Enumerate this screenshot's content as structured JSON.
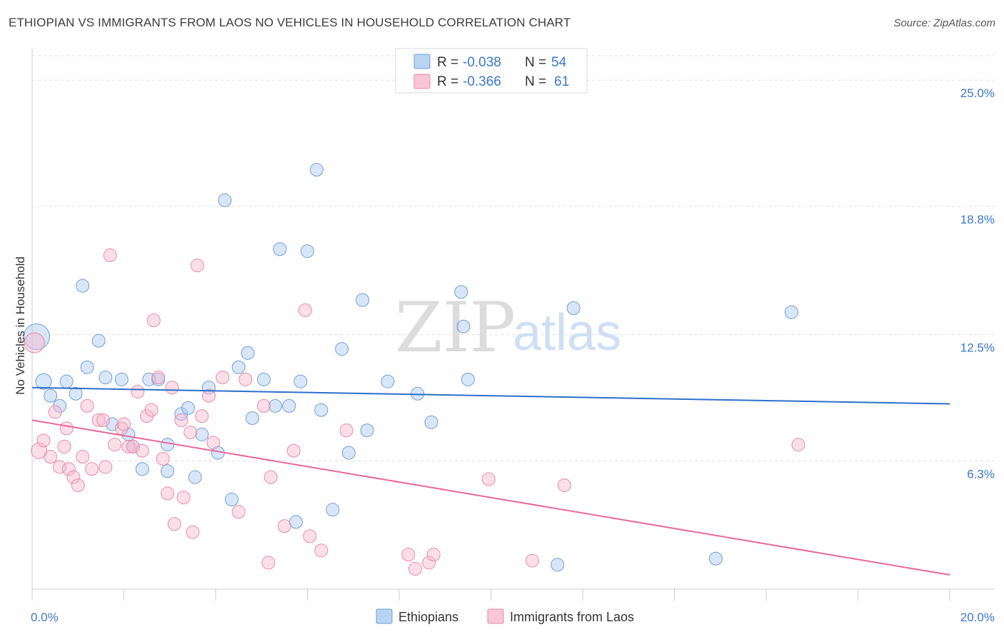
{
  "title": "ETHIOPIAN VS IMMIGRANTS FROM LAOS NO VEHICLES IN HOUSEHOLD CORRELATION CHART",
  "source": "Source: ZipAtlas.com",
  "watermark": {
    "zip": "ZIP",
    "atlas": "atlas"
  },
  "legend_top": {
    "rows": [
      {
        "r_label": "R =",
        "r_value": "-0.038",
        "n_label": "N =",
        "n_value": "54",
        "color": "#a9c8ef"
      },
      {
        "r_label": "R =",
        "r_value": "-0.366",
        "n_label": "N =",
        "n_value": "61",
        "color": "#f6b8cc"
      }
    ]
  },
  "chart_data": {
    "type": "scatter",
    "title": "ETHIOPIAN VS IMMIGRANTS FROM LAOS NO VEHICLES IN HOUSEHOLD CORRELATION CHART",
    "xlabel": "",
    "ylabel": "No Vehicles in Household",
    "xlim": [
      0,
      20
    ],
    "ylim": [
      0,
      26.2
    ],
    "x_tick_labels": [
      "0.0%",
      "20.0%"
    ],
    "y_ticks": [
      6.3,
      12.5,
      18.8,
      25.0
    ],
    "y_tick_labels": [
      "6.3%",
      "12.5%",
      "18.8%",
      "25.0%"
    ],
    "grid": true,
    "legend_placement": "bottom-center",
    "series": [
      {
        "name": "Ethiopians",
        "color": "#a9c8ef",
        "edge": "#6f9fd8",
        "trend": {
          "x": [
            0,
            20
          ],
          "y": [
            9.9,
            9.1
          ],
          "color": "#2d6fcc"
        },
        "points": [
          [
            0.1,
            12.4,
            18
          ],
          [
            0.25,
            10.2,
            11
          ],
          [
            0.4,
            9.5,
            9
          ],
          [
            0.6,
            9.0,
            9
          ],
          [
            0.75,
            10.2,
            9
          ],
          [
            0.95,
            9.6,
            9
          ],
          [
            1.1,
            14.9,
            9
          ],
          [
            1.2,
            10.9,
            9
          ],
          [
            1.45,
            12.2,
            9
          ],
          [
            1.6,
            10.4,
            9
          ],
          [
            1.75,
            8.1,
            9
          ],
          [
            1.95,
            10.3,
            9
          ],
          [
            2.1,
            7.6,
            9
          ],
          [
            2.2,
            7.0,
            9
          ],
          [
            2.4,
            5.9,
            9
          ],
          [
            2.55,
            10.3,
            9
          ],
          [
            2.75,
            10.3,
            9
          ],
          [
            2.95,
            7.1,
            9
          ],
          [
            2.95,
            5.8,
            9
          ],
          [
            3.25,
            8.6,
            9
          ],
          [
            3.4,
            8.9,
            9
          ],
          [
            3.55,
            5.5,
            9
          ],
          [
            3.7,
            7.6,
            9
          ],
          [
            3.85,
            9.9,
            9
          ],
          [
            4.05,
            6.7,
            9
          ],
          [
            4.2,
            19.1,
            9
          ],
          [
            4.35,
            4.4,
            9
          ],
          [
            4.5,
            10.9,
            9
          ],
          [
            4.7,
            11.6,
            9
          ],
          [
            4.8,
            8.4,
            9
          ],
          [
            5.05,
            10.3,
            9
          ],
          [
            5.3,
            9.0,
            9
          ],
          [
            5.4,
            16.7,
            9
          ],
          [
            5.6,
            9.0,
            9
          ],
          [
            5.75,
            3.3,
            9
          ],
          [
            5.85,
            10.2,
            9
          ],
          [
            6.0,
            16.6,
            9
          ],
          [
            6.2,
            20.6,
            9
          ],
          [
            6.3,
            8.8,
            9
          ],
          [
            6.55,
            3.9,
            9
          ],
          [
            6.75,
            11.8,
            9
          ],
          [
            6.9,
            6.7,
            9
          ],
          [
            7.2,
            14.2,
            9
          ],
          [
            7.3,
            7.8,
            9
          ],
          [
            7.75,
            10.2,
            9
          ],
          [
            8.4,
            9.6,
            9
          ],
          [
            8.7,
            8.2,
            9
          ],
          [
            9.35,
            14.6,
            9
          ],
          [
            9.4,
            12.9,
            9
          ],
          [
            9.5,
            10.3,
            9
          ],
          [
            11.8,
            13.8,
            9
          ],
          [
            11.45,
            1.2,
            9
          ],
          [
            14.9,
            1.5,
            9
          ],
          [
            16.55,
            13.6,
            9
          ]
        ]
      },
      {
        "name": "Immigrants from Laos",
        "color": "#f6b8cc",
        "edge": "#e88aa8",
        "trend": {
          "x": [
            0,
            20
          ],
          "y": [
            8.3,
            0.7
          ],
          "color": "#e8689a"
        },
        "points": [
          [
            0.05,
            12.1,
            14
          ],
          [
            0.15,
            6.8,
            11
          ],
          [
            0.25,
            7.3,
            9
          ],
          [
            0.4,
            6.5,
            9
          ],
          [
            0.5,
            8.7,
            9
          ],
          [
            0.6,
            6.0,
            9
          ],
          [
            0.7,
            7.0,
            9
          ],
          [
            0.75,
            7.9,
            9
          ],
          [
            0.8,
            5.9,
            9
          ],
          [
            0.9,
            5.5,
            9
          ],
          [
            1.0,
            5.1,
            9
          ],
          [
            1.1,
            6.5,
            9
          ],
          [
            1.2,
            9.0,
            9
          ],
          [
            1.3,
            5.9,
            9
          ],
          [
            1.45,
            8.3,
            9
          ],
          [
            1.55,
            8.3,
            9
          ],
          [
            1.6,
            6.0,
            9
          ],
          [
            1.7,
            16.4,
            9
          ],
          [
            1.8,
            7.1,
            9
          ],
          [
            1.95,
            7.9,
            9
          ],
          [
            2.0,
            8.1,
            9
          ],
          [
            2.1,
            7.0,
            9
          ],
          [
            2.2,
            7.0,
            9
          ],
          [
            2.3,
            9.7,
            9
          ],
          [
            2.4,
            6.8,
            9
          ],
          [
            2.5,
            8.5,
            9
          ],
          [
            2.6,
            8.8,
            9
          ],
          [
            2.65,
            13.2,
            9
          ],
          [
            2.75,
            10.4,
            9
          ],
          [
            2.85,
            6.4,
            9
          ],
          [
            2.95,
            4.7,
            9
          ],
          [
            3.05,
            9.9,
            9
          ],
          [
            3.1,
            3.2,
            9
          ],
          [
            3.25,
            8.3,
            9
          ],
          [
            3.3,
            4.5,
            9
          ],
          [
            3.45,
            7.7,
            9
          ],
          [
            3.5,
            2.8,
            9
          ],
          [
            3.6,
            15.9,
            9
          ],
          [
            3.7,
            8.5,
            9
          ],
          [
            3.85,
            9.5,
            9
          ],
          [
            3.95,
            7.2,
            9
          ],
          [
            4.15,
            10.4,
            9
          ],
          [
            4.5,
            3.8,
            9
          ],
          [
            4.65,
            10.3,
            9
          ],
          [
            5.05,
            9.0,
            9
          ],
          [
            5.15,
            1.3,
            9
          ],
          [
            5.2,
            5.5,
            9
          ],
          [
            5.5,
            3.1,
            9
          ],
          [
            5.7,
            6.8,
            9
          ],
          [
            5.95,
            13.7,
            9
          ],
          [
            6.05,
            2.6,
            9
          ],
          [
            6.3,
            1.9,
            9
          ],
          [
            6.85,
            7.8,
            9
          ],
          [
            8.2,
            1.7,
            9
          ],
          [
            8.35,
            1.0,
            9
          ],
          [
            8.65,
            1.3,
            9
          ],
          [
            8.75,
            1.7,
            9
          ],
          [
            9.95,
            5.4,
            9
          ],
          [
            10.9,
            1.4,
            9
          ],
          [
            11.6,
            5.1,
            9
          ],
          [
            16.7,
            7.1,
            9
          ]
        ]
      }
    ]
  }
}
